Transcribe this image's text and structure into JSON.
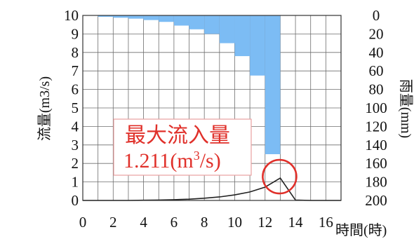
{
  "chart_data": {
    "type": "combo-bar-line",
    "x_label": "時間(時)",
    "y_left_label": "流量(m3/s)",
    "y_right_label": "雨量(mm)",
    "x_ticks": [
      "0",
      "2",
      "4",
      "6",
      "8",
      "10",
      "12",
      "14",
      "16"
    ],
    "y_left_ticks": [
      "0",
      "1",
      "2",
      "3",
      "4",
      "5",
      "6",
      "7",
      "8",
      "9",
      "10"
    ],
    "y_right_ticks": [
      "0",
      "20",
      "40",
      "60",
      "80",
      "100",
      "120",
      "140",
      "160",
      "180",
      "200"
    ],
    "x_range": [
      0,
      17
    ],
    "y_left_range": [
      0,
      10
    ],
    "y_right_range": [
      0,
      200
    ],
    "y_right_inverted": true,
    "grid": true,
    "rainfall": {
      "color": "#7cbcf4",
      "x_start": [
        1,
        2,
        3,
        4,
        5,
        6,
        7,
        8,
        9,
        10,
        11,
        12
      ],
      "x_end": [
        2,
        3,
        4,
        5,
        6,
        7,
        8,
        9,
        10,
        11,
        12,
        13
      ],
      "values": [
        1.5,
        2.5,
        3.5,
        5,
        7,
        11,
        15,
        20,
        30,
        44,
        65,
        150
      ]
    },
    "discharge": {
      "color": "#222222",
      "x": [
        0,
        1,
        2,
        3,
        4,
        5,
        6,
        7,
        8,
        9,
        10,
        11,
        12,
        13,
        14,
        15,
        16,
        17
      ],
      "y": [
        0,
        0,
        0,
        0,
        0.01,
        0.02,
        0.04,
        0.07,
        0.12,
        0.19,
        0.3,
        0.46,
        0.72,
        1.211,
        0.02,
        0,
        0,
        0
      ]
    },
    "peak": {
      "x": 13,
      "y": 1.211,
      "highlight_color": "#e0302a"
    },
    "annotation": {
      "line1": "最大流入量",
      "line2_prefix": "1.211(m",
      "line2_sup": "3",
      "line2_suffix": "/s)"
    }
  }
}
